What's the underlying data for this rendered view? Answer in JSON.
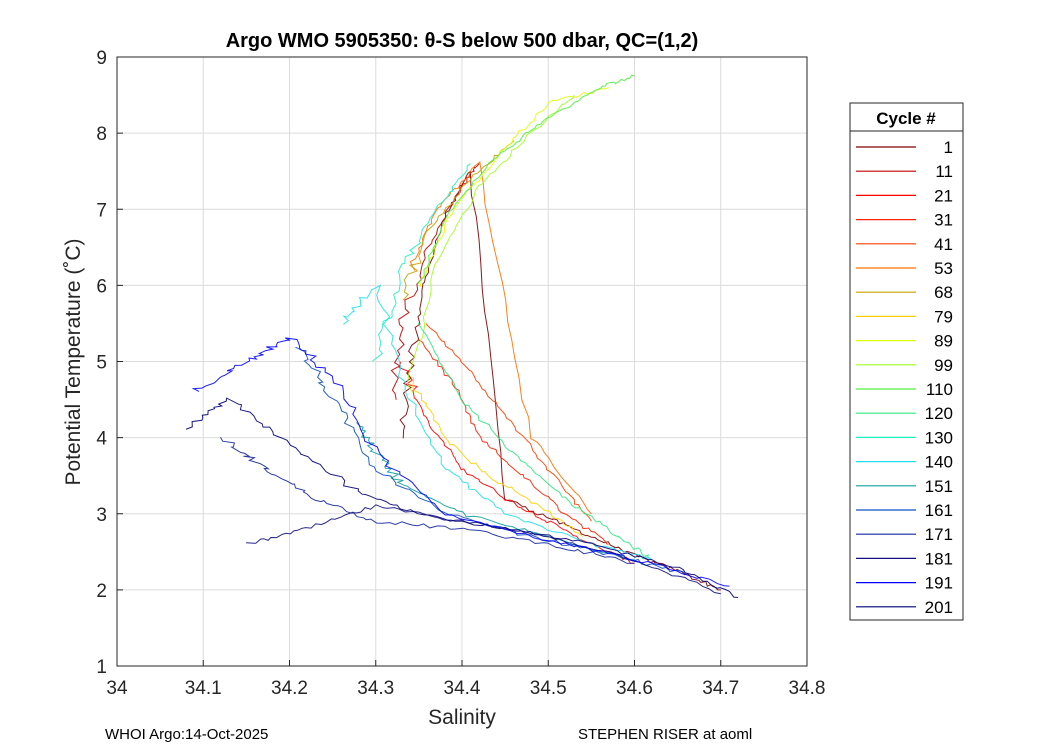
{
  "chart_data": {
    "type": "line",
    "title": "Argo WMO 5905350: θ-S below 500 dbar,  QC=(1,2)",
    "xlabel": "Salinity",
    "ylabel": "Potential Temperature (˚C)",
    "xlim": [
      34.0,
      34.8
    ],
    "ylim": [
      1,
      9
    ],
    "xticks": [
      "34",
      "34.1",
      "34.2",
      "34.3",
      "34.4",
      "34.5",
      "34.6",
      "34.7",
      "34.8"
    ],
    "yticks": [
      "1",
      "2",
      "3",
      "4",
      "5",
      "6",
      "7",
      "8",
      "9"
    ],
    "grid": true,
    "legend": {
      "title": "Cycle #",
      "placement": "right",
      "entries": [
        {
          "label": "1",
          "color": "#800000"
        },
        {
          "label": "11",
          "color": "#c00000"
        },
        {
          "label": "21",
          "color": "#ff0000"
        },
        {
          "label": "31",
          "color": "#ff2000"
        },
        {
          "label": "41",
          "color": "#ff4000"
        },
        {
          "label": "53",
          "color": "#ff7000"
        },
        {
          "label": "68",
          "color": "#c8a000"
        },
        {
          "label": "79",
          "color": "#ffd000"
        },
        {
          "label": "89",
          "color": "#e0ff00"
        },
        {
          "label": "99",
          "color": "#a0ff20"
        },
        {
          "label": "110",
          "color": "#50f040"
        },
        {
          "label": "120",
          "color": "#30e880"
        },
        {
          "label": "130",
          "color": "#20f0c0"
        },
        {
          "label": "140",
          "color": "#20e0f0"
        },
        {
          "label": "151",
          "color": "#10a0a0"
        },
        {
          "label": "161",
          "color": "#1050c0"
        },
        {
          "label": "171",
          "color": "#1828a0"
        },
        {
          "label": "181",
          "color": "#101080"
        },
        {
          "label": "191",
          "color": "#0000ff"
        },
        {
          "label": "201",
          "color": "#00007a"
        }
      ]
    },
    "series": [
      {
        "name": "1",
        "color": "#800000",
        "x": [
          34.33,
          34.34,
          34.355,
          34.38,
          34.41,
          34.45,
          34.5,
          34.55,
          34.6,
          34.65,
          34.7
        ],
        "y": [
          4.0,
          5.0,
          6.0,
          6.9,
          7.5,
          3.2,
          2.95,
          2.7,
          2.45,
          2.25,
          2.0
        ]
      },
      {
        "name": "11",
        "color": "#c00000",
        "x": [
          34.32,
          34.33,
          34.36,
          34.4,
          34.42
        ],
        "y": [
          4.5,
          5.5,
          6.5,
          7.3,
          7.6
        ]
      },
      {
        "name": "21",
        "color": "#ff0000",
        "x": [
          34.33,
          34.36,
          34.4,
          34.45,
          34.5,
          34.55,
          34.6
        ],
        "y": [
          5.0,
          4.2,
          3.6,
          3.2,
          2.9,
          2.6,
          2.35
        ]
      },
      {
        "name": "31",
        "color": "#ff2000",
        "x": [
          34.35,
          34.39,
          34.42,
          34.47,
          34.52,
          34.57
        ],
        "y": [
          5.3,
          4.7,
          4.0,
          3.5,
          3.0,
          2.6
        ]
      },
      {
        "name": "41",
        "color": "#ff4000",
        "x": [
          34.36,
          34.4,
          34.45,
          34.5,
          34.55
        ],
        "y": [
          5.5,
          5.0,
          4.3,
          3.6,
          2.9
        ]
      },
      {
        "name": "53",
        "color": "#ff7000",
        "x": [
          34.34,
          34.37,
          34.42,
          34.48,
          34.55
        ],
        "y": [
          6.2,
          7.0,
          7.6,
          4.0,
          3.0
        ]
      },
      {
        "name": "68",
        "color": "#c8a000",
        "x": [
          34.33,
          34.36,
          34.41,
          34.46
        ],
        "y": [
          5.8,
          6.7,
          7.4,
          7.9
        ]
      },
      {
        "name": "79",
        "color": "#ffd000",
        "x": [
          34.34,
          34.38,
          34.43,
          34.49,
          34.54
        ],
        "y": [
          4.8,
          4.0,
          3.5,
          3.1,
          2.7
        ]
      },
      {
        "name": "89",
        "color": "#e0ff00",
        "x": [
          34.35,
          34.39,
          34.45,
          34.5,
          34.57
        ],
        "y": [
          6.0,
          7.0,
          7.8,
          8.4,
          8.6
        ]
      },
      {
        "name": "99",
        "color": "#a0ff20",
        "x": [
          34.34,
          34.37,
          34.42,
          34.48,
          34.53
        ],
        "y": [
          4.6,
          6.3,
          7.3,
          8.0,
          8.5
        ]
      },
      {
        "name": "110",
        "color": "#50f040",
        "x": [
          34.35,
          34.38,
          34.44,
          34.5,
          34.56,
          34.6
        ],
        "y": [
          6.0,
          6.9,
          7.7,
          8.2,
          8.6,
          8.75
        ]
      },
      {
        "name": "120",
        "color": "#30e880",
        "x": [
          34.35,
          34.4,
          34.46,
          34.52,
          34.58,
          34.62
        ],
        "y": [
          5.5,
          4.5,
          3.8,
          3.2,
          2.7,
          2.4
        ]
      },
      {
        "name": "130",
        "color": "#20f0c0",
        "x": [
          34.3,
          34.33,
          34.37,
          34.41
        ],
        "y": [
          5.0,
          6.2,
          7.0,
          7.6
        ]
      },
      {
        "name": "140",
        "color": "#20e0f0",
        "x": [
          34.26,
          34.3,
          34.34,
          34.38,
          34.45,
          34.55,
          34.62
        ],
        "y": [
          5.5,
          6.0,
          4.5,
          3.6,
          3.0,
          2.6,
          2.4
        ]
      },
      {
        "name": "151",
        "color": "#10a0a0",
        "x": [
          34.28,
          34.3,
          34.33,
          34.4,
          34.5,
          34.6
        ],
        "y": [
          4.2,
          3.8,
          3.4,
          3.0,
          2.7,
          2.4
        ]
      },
      {
        "name": "161",
        "color": "#1050c0",
        "x": [
          34.21,
          34.25,
          34.3,
          34.38,
          34.48,
          34.58,
          34.66
        ],
        "y": [
          5.2,
          4.5,
          3.6,
          3.0,
          2.7,
          2.45,
          2.2
        ]
      },
      {
        "name": "171",
        "color": "#1828a0",
        "x": [
          34.12,
          34.17,
          34.23,
          34.3,
          34.4,
          34.5,
          34.6
        ],
        "y": [
          4.0,
          3.6,
          3.2,
          2.9,
          2.8,
          2.6,
          2.35
        ]
      },
      {
        "name": "181",
        "color": "#101080",
        "x": [
          34.15,
          34.22,
          34.3,
          34.4,
          34.5,
          34.6,
          34.7
        ],
        "y": [
          2.6,
          2.8,
          3.1,
          2.9,
          2.7,
          2.4,
          1.95
        ]
      },
      {
        "name": "191",
        "color": "#0000ff",
        "x": [
          34.09,
          34.15,
          34.2,
          34.25,
          34.3,
          34.38,
          34.5,
          34.6,
          34.71
        ],
        "y": [
          4.6,
          5.0,
          5.3,
          4.8,
          3.8,
          3.0,
          2.65,
          2.4,
          2.05
        ]
      },
      {
        "name": "201",
        "color": "#00007a",
        "x": [
          34.08,
          34.13,
          34.2,
          34.28,
          34.35,
          34.45,
          34.55,
          34.65,
          34.72
        ],
        "y": [
          4.1,
          4.5,
          3.9,
          3.3,
          3.0,
          2.8,
          2.6,
          2.3,
          1.9
        ]
      }
    ]
  },
  "footer": {
    "left": "WHOI Argo:14-Oct-2025",
    "right": "STEPHEN RISER at aoml"
  }
}
